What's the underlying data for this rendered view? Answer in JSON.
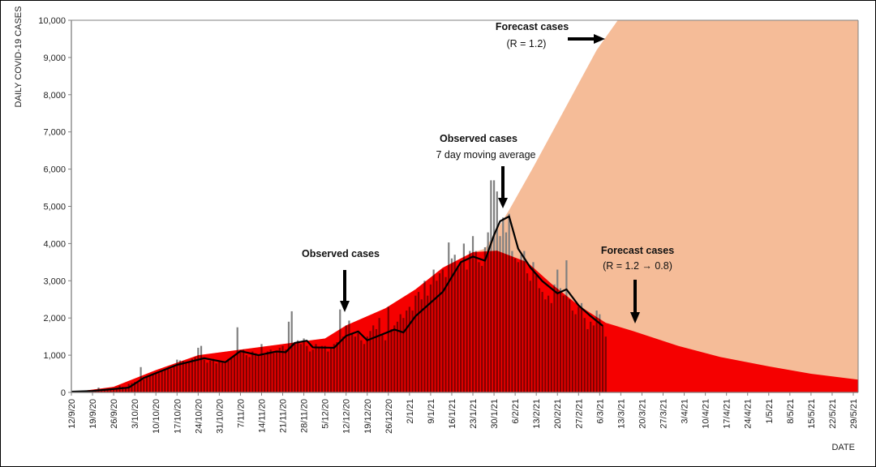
{
  "chart_data": {
    "type": "bar",
    "xlabel": "DATE",
    "ylabel": "DAILY COVID-19 CASES",
    "ylim": [
      0,
      10000
    ],
    "yticks": [
      "0",
      "1,000",
      "2,000",
      "3,000",
      "4,000",
      "5,000",
      "6,000",
      "7,000",
      "8,000",
      "9,000",
      "10,000"
    ],
    "xticks": [
      "12/9/20",
      "19/9/20",
      "26/9/20",
      "3/10/20",
      "10/10/20",
      "17/10/20",
      "24/10/20",
      "31/10/20",
      "7/11/20",
      "14/11/20",
      "21/11/20",
      "28/11/20",
      "5/12/20",
      "12/12/20",
      "19/12/20",
      "26/12/20",
      "2/1/21",
      "9/1/21",
      "16/1/21",
      "23/1/21",
      "30/1/21",
      "6/2/21",
      "13/2/21",
      "20/2/21",
      "27/2/21",
      "6/3/21",
      "13/3/21",
      "20/3/21",
      "27/3/21",
      "3/4/21",
      "10/4/21",
      "17/4/21",
      "24/4/21",
      "1/5/21",
      "8/5/21",
      "15/5/21",
      "22/5/21",
      "29/5/21"
    ],
    "grid": false,
    "colors": {
      "observed_bars": "#808080",
      "forecast_r_1_2": "#f5bc98",
      "forecast_r_1_2_to_0_8": "#ff0000",
      "moving_average": "#000000"
    },
    "observed_daily": {
      "start": "12/9/20",
      "values": [
        20,
        15,
        30,
        25,
        40,
        30,
        35,
        50,
        45,
        130,
        60,
        70,
        80,
        90,
        100,
        110,
        180,
        150,
        140,
        230,
        250,
        280,
        300,
        680,
        350,
        420,
        450,
        480,
        500,
        520,
        560,
        600,
        650,
        640,
        700,
        880,
        860,
        850,
        780,
        800,
        900,
        950,
        1200,
        1250,
        880,
        800,
        850,
        900,
        780,
        850,
        800,
        780,
        900,
        950,
        1000,
        1750,
        1100,
        1150,
        1000,
        950,
        1100,
        1050,
        1000,
        1300,
        1000,
        1100,
        1150,
        1050,
        1100,
        1200,
        1250,
        1150,
        1900,
        2180,
        1350,
        1400,
        1300,
        1450,
        1250,
        1100,
        1150,
        1300,
        1200,
        1250,
        1250,
        1100,
        1200,
        1300,
        1350,
        2230,
        1500,
        1800,
        1930,
        1600,
        1500,
        1600,
        1400,
        1300,
        1500,
        1650,
        1800,
        1700,
        2000,
        1550,
        1400,
        2300,
        1700,
        1800,
        1900,
        2100,
        2000,
        2200,
        2300,
        2200,
        2600,
        2700,
        2500,
        3000,
        2600,
        2900,
        3300,
        3000,
        3200,
        3300,
        3100,
        4030,
        3600,
        3700,
        3400,
        3500,
        4000,
        3300,
        3800,
        4200,
        3800,
        3500,
        3400,
        3900,
        4300,
        5700,
        5700,
        5400,
        4200,
        4700,
        4300,
        4800,
        3800,
        3600,
        3500,
        3700,
        3800,
        3200,
        3000,
        3500,
        3200,
        2800,
        2700,
        2500,
        2600,
        2400,
        2900,
        3300,
        2800,
        2600,
        3550,
        2500,
        2200,
        2100,
        2300,
        2400,
        2000,
        1700,
        1900,
        1800,
        2200,
        2100,
        1800,
        1500
      ]
    },
    "moving_average_7day": [
      [
        "12/9/20",
        20
      ],
      [
        "19/9/20",
        40
      ],
      [
        "1/10/20",
        130
      ],
      [
        "6/10/20",
        390
      ],
      [
        "17/10/20",
        740
      ],
      [
        "26/10/20",
        920
      ],
      [
        "2/11/20",
        810
      ],
      [
        "7/11/20",
        1110
      ],
      [
        "13/11/20",
        1000
      ],
      [
        "19/11/20",
        1100
      ],
      [
        "22/11/20",
        1080
      ],
      [
        "25/11/20",
        1330
      ],
      [
        "29/11/20",
        1390
      ],
      [
        "1/12/20",
        1210
      ],
      [
        "8/12/20",
        1200
      ],
      [
        "12/12/20",
        1520
      ],
      [
        "16/12/20",
        1640
      ],
      [
        "19/12/20",
        1400
      ],
      [
        "24/12/20",
        1560
      ],
      [
        "28/12/20",
        1690
      ],
      [
        "31/12/20",
        1610
      ],
      [
        "4/1/21",
        2050
      ],
      [
        "13/1/21",
        2700
      ],
      [
        "19/1/21",
        3500
      ],
      [
        "23/1/21",
        3650
      ],
      [
        "27/1/21",
        3540
      ],
      [
        "30/1/21",
        4230
      ],
      [
        "1/2/21",
        4600
      ],
      [
        "4/2/21",
        4730
      ],
      [
        "7/2/21",
        3860
      ],
      [
        "11/2/21",
        3360
      ],
      [
        "15/2/21",
        2990
      ],
      [
        "20/2/21",
        2660
      ],
      [
        "23/2/21",
        2770
      ],
      [
        "27/2/21",
        2340
      ],
      [
        "3/3/21",
        2050
      ],
      [
        "7/3/21",
        1790
      ]
    ],
    "series": [
      {
        "name": "Forecast cases (R = 1.2)",
        "points": [
          [
            "12/9/20",
            0
          ],
          [
            "26/9/20",
            150
          ],
          [
            "10/10/20",
            600
          ],
          [
            "24/10/20",
            1000
          ],
          [
            "7/11/20",
            1150
          ],
          [
            "21/11/20",
            1300
          ],
          [
            "5/12/20",
            1450
          ],
          [
            "12/12/20",
            1800
          ],
          [
            "25/12/20",
            2260
          ],
          [
            "4/1/21",
            2770
          ],
          [
            "13/1/21",
            3350
          ],
          [
            "23/1/21",
            3770
          ],
          [
            "27/1/21",
            3860
          ],
          [
            "4/2/21",
            4900
          ],
          [
            "12/2/21",
            6050
          ],
          [
            "20/2/21",
            7250
          ],
          [
            "27/2/21",
            8300
          ],
          [
            "5/3/21",
            9200
          ],
          [
            "12/3/21",
            10000
          ]
        ]
      },
      {
        "name": "Forecast cases (R = 1.2 → 0.8)",
        "points": [
          [
            "12/9/20",
            0
          ],
          [
            "26/9/20",
            150
          ],
          [
            "10/10/20",
            600
          ],
          [
            "24/10/20",
            1000
          ],
          [
            "7/11/20",
            1150
          ],
          [
            "21/11/20",
            1300
          ],
          [
            "5/12/20",
            1450
          ],
          [
            "12/12/20",
            1800
          ],
          [
            "25/12/20",
            2260
          ],
          [
            "4/1/21",
            2770
          ],
          [
            "13/1/21",
            3350
          ],
          [
            "23/1/21",
            3770
          ],
          [
            "31/1/21",
            3810
          ],
          [
            "10/2/21",
            3500
          ],
          [
            "18/2/21",
            2920
          ],
          [
            "27/2/21",
            2340
          ],
          [
            "8/3/21",
            1870
          ],
          [
            "17/3/21",
            1650
          ],
          [
            "1/4/21",
            1250
          ],
          [
            "15/4/21",
            950
          ],
          [
            "1/5/21",
            700
          ],
          [
            "15/5/21",
            500
          ],
          [
            "31/5/21",
            340
          ]
        ]
      }
    ],
    "annotations": {
      "forecast_high_title": "Forecast cases",
      "forecast_high_sub": "(R = 1.2)",
      "ma_title": "Observed cases",
      "ma_sub": "7 day moving average",
      "observed_title": "Observed cases",
      "forecast_low_title": "Forecast cases",
      "forecast_low_sub": "(R = 1.2 → 0.8)"
    }
  }
}
